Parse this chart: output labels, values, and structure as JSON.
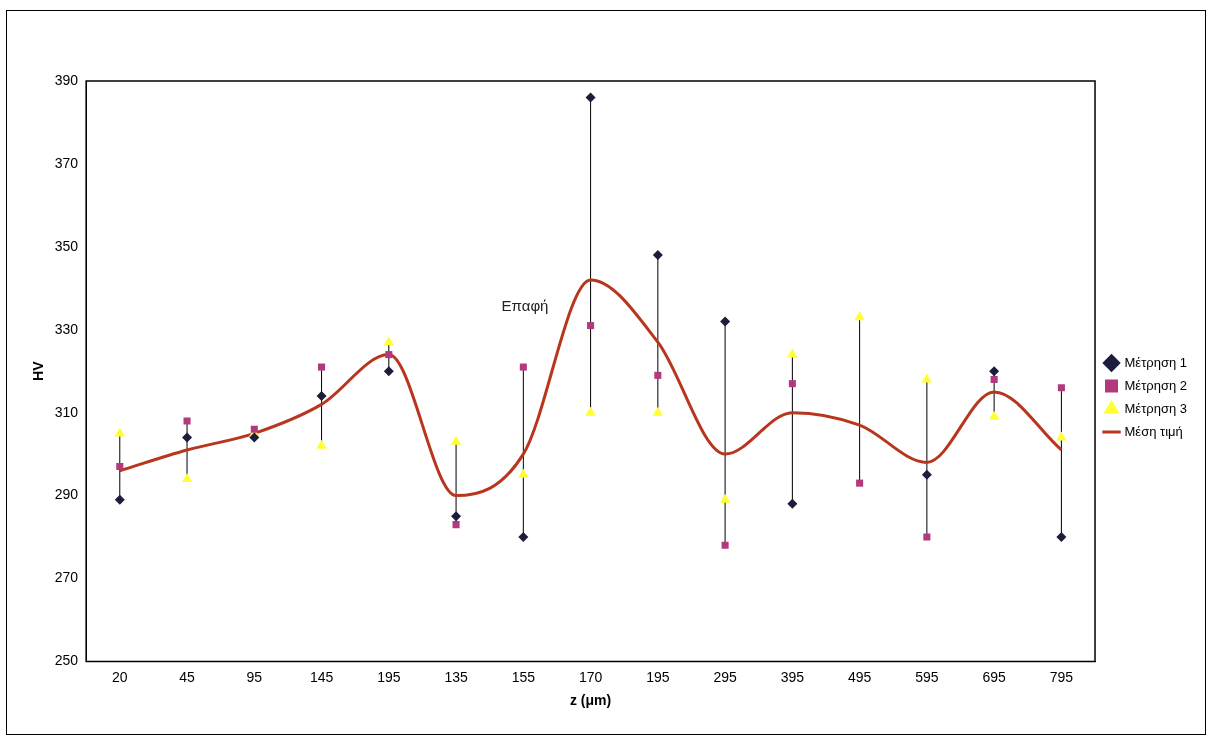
{
  "chart_data": {
    "type": "scatter",
    "xlabel": "z (μm)",
    "ylabel": "HV",
    "categories": [
      "20",
      "45",
      "95",
      "145",
      "195",
      "135",
      "155",
      "170",
      "195",
      "295",
      "395",
      "495",
      "595",
      "695",
      "795"
    ],
    "series": [
      {
        "name": "Μέτρηση 1",
        "color": "#1c1c3c",
        "marker": "diamond",
        "values": [
          289,
          304,
          304,
          314,
          320,
          285,
          280,
          386,
          348,
          332,
          288,
          null,
          295,
          320,
          280
        ]
      },
      {
        "name": "Μέτρηση 2",
        "color": "#b23a7c",
        "marker": "square",
        "values": [
          297,
          308,
          306,
          321,
          324,
          283,
          321,
          331,
          319,
          278,
          317,
          293,
          280,
          318,
          316
        ]
      },
      {
        "name": "Μέτρηση 3",
        "color": "#ffff33",
        "marker": "triangle",
        "values": [
          305,
          294,
          305,
          302,
          327,
          303,
          295,
          310,
          310,
          289,
          324,
          333,
          318,
          309,
          304
        ]
      },
      {
        "name": "Μέση τιμή",
        "type": "line",
        "color": "#b8351e",
        "marker": "none",
        "values": [
          296,
          301,
          305,
          312,
          324,
          290,
          300,
          342,
          327,
          300,
          310,
          307,
          298,
          315,
          301
        ]
      }
    ],
    "ylim": [
      250,
      390
    ],
    "yticks": [
      250,
      270,
      290,
      310,
      330,
      350,
      370,
      390
    ],
    "grid": false,
    "legend": "right",
    "annotations": [
      "Επαφή"
    ]
  }
}
